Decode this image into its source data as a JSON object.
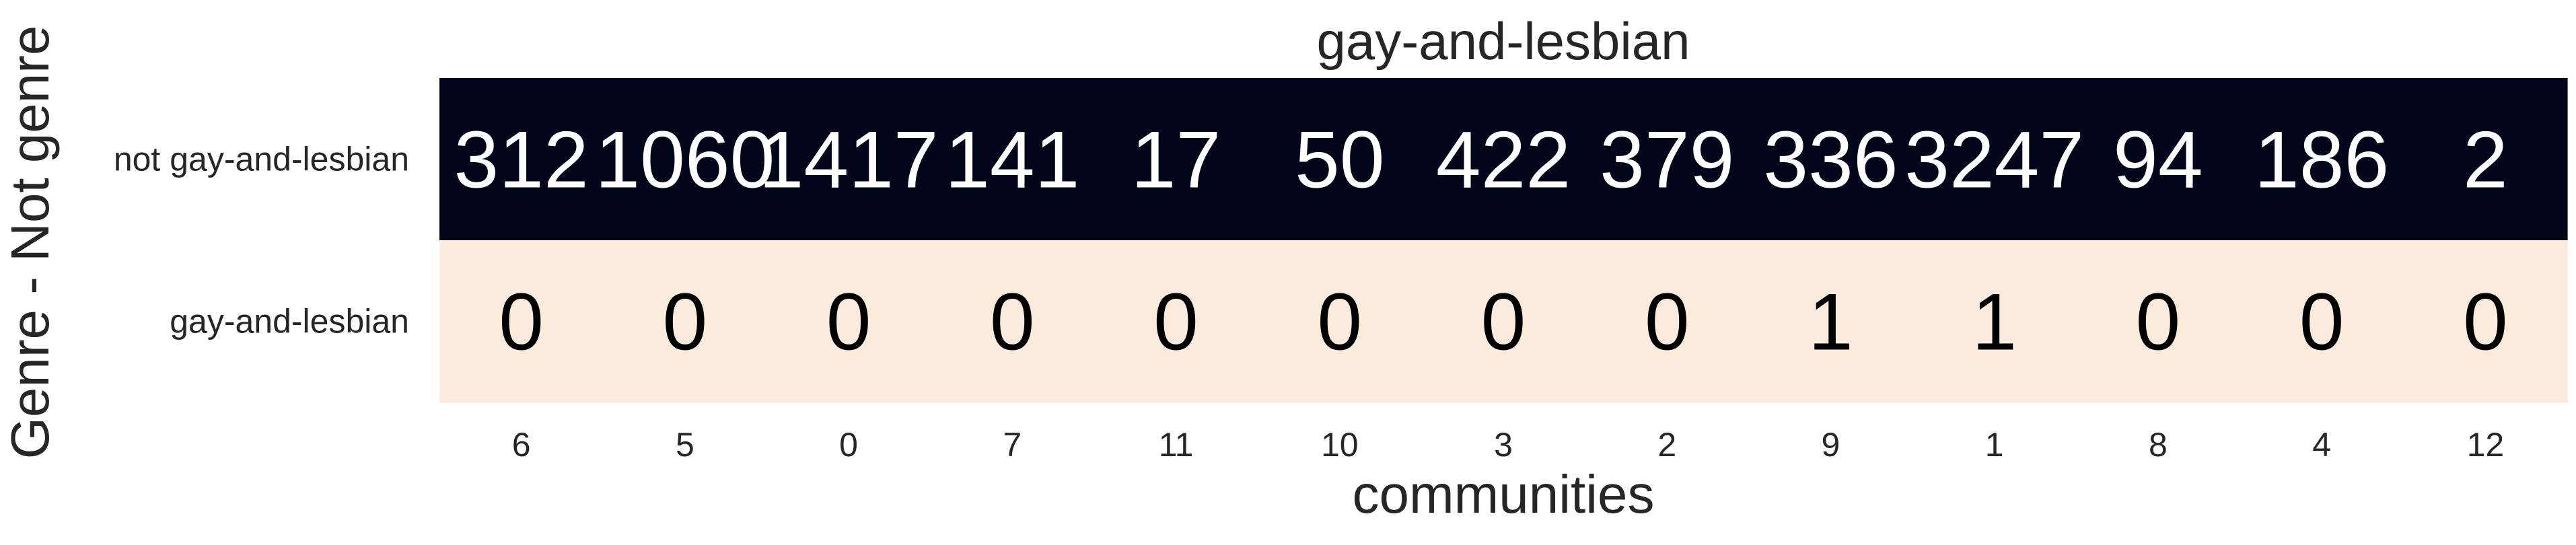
{
  "chart_data": {
    "type": "heatmap",
    "title": "gay-and-lesbian",
    "xlabel": "communities",
    "ylabel": "Genre - Not genre",
    "x_categories": [
      "6",
      "5",
      "0",
      "7",
      "11",
      "10",
      "3",
      "2",
      "9",
      "1",
      "8",
      "4",
      "12"
    ],
    "y_categories": [
      "not gay-and-lesbian",
      "gay-and-lesbian"
    ],
    "values": [
      [
        312,
        1060,
        1417,
        141,
        17,
        50,
        422,
        379,
        336,
        3247,
        94,
        186,
        2
      ],
      [
        0,
        0,
        0,
        0,
        0,
        0,
        0,
        0,
        1,
        1,
        0,
        0,
        0
      ]
    ],
    "colorbar": false,
    "colors": {
      "high": "#03051a",
      "low": "#faebdd",
      "text_on_dark": "#ffffff",
      "text_on_light": "#000000"
    }
  }
}
